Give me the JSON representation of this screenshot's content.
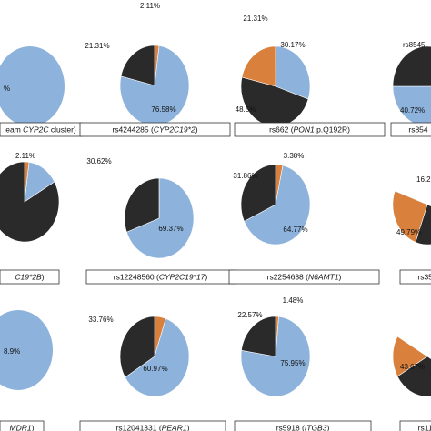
{
  "colors": {
    "blue": "#8DB3DC",
    "black": "#2A2A2A",
    "orange": "#D9813C"
  },
  "chart_data": [
    {
      "type": "pie",
      "caption": "eam CYP2C cluster)",
      "caption_parts": [
        "eam ",
        "CYP2C",
        " cluster)"
      ],
      "slices": [
        {
          "color": "blue",
          "value": null
        }
      ],
      "labels": [
        "%"
      ]
    },
    {
      "type": "pie",
      "caption": "rs4244285 (CYP2C19*2)",
      "caption_parts": [
        "rs4244285 (",
        "CYP2C19*2",
        ")"
      ],
      "slices": [
        {
          "color": "orange",
          "value": 2.11
        },
        {
          "color": "blue",
          "value": 76.58
        },
        {
          "color": "black",
          "value": 21.31
        }
      ],
      "labels": [
        "2.11%",
        "76.58%",
        "21.31%"
      ]
    },
    {
      "type": "pie",
      "caption": "rs662 (PON1 p.Q192R)",
      "caption_parts": [
        "rs662 (",
        "PON1",
        " p.Q192R)"
      ],
      "slices": [
        {
          "color": "blue",
          "value": 30.17
        },
        {
          "color": "black",
          "value": 48.5
        },
        {
          "color": "orange",
          "value": 21.31
        }
      ],
      "labels": [
        "30.17%",
        "48.5%",
        "21.31%"
      ]
    },
    {
      "type": "pie",
      "caption": "rs854",
      "caption_parts": [
        "rs854",
        "",
        ""
      ],
      "slices": [
        {
          "color": "blue",
          "value": null
        },
        {
          "color": "black",
          "value": 40.72
        }
      ],
      "labels": [
        "rs8545",
        "40.72%"
      ]
    },
    {
      "type": "pie",
      "caption": "C19*2B)",
      "caption_parts": [
        "",
        "C19*2B",
        ")"
      ],
      "slices": [
        {
          "color": "orange",
          "value": 2.11
        }
      ],
      "labels": [
        "2.11%"
      ]
    },
    {
      "type": "pie",
      "caption": "rs12248560 (CYP2C19*17)",
      "caption_parts": [
        "rs12248560 (",
        "CYP2C19*17",
        ")"
      ],
      "slices": [
        {
          "color": "blue",
          "value": 69.37
        },
        {
          "color": "black",
          "value": 30.62
        }
      ],
      "labels": [
        "69.37%",
        "30.62%"
      ]
    },
    {
      "type": "pie",
      "caption": "rs2254638 (N6AMT1)",
      "caption_parts": [
        "rs2254638 (",
        "N6AMT1",
        ")"
      ],
      "slices": [
        {
          "color": "orange",
          "value": 3.38
        },
        {
          "color": "blue",
          "value": 64.77
        },
        {
          "color": "black",
          "value": 31.86
        }
      ],
      "labels": [
        "3.38%",
        "64.77%",
        "31.86%"
      ]
    },
    {
      "type": "pie",
      "caption": "rs354",
      "caption_parts": [
        "rs354",
        "",
        ""
      ],
      "slices": [
        {
          "color": "orange",
          "value": 16.2
        },
        {
          "color": "black",
          "value": 49.79
        }
      ],
      "labels": [
        "16.2",
        "49.79%"
      ]
    },
    {
      "type": "pie",
      "caption": "MDR1)",
      "caption_parts": [
        "",
        "MDR1",
        ")"
      ],
      "slices": [
        {
          "color": "blue",
          "value": null
        }
      ],
      "labels": [
        "8.9%"
      ]
    },
    {
      "type": "pie",
      "caption": "rs12041331 (PEAR1)",
      "caption_parts": [
        "rs12041331 (",
        "PEAR1",
        ")"
      ],
      "slices": [
        {
          "color": "orange",
          "value": 5.27
        },
        {
          "color": "blue",
          "value": 60.97
        },
        {
          "color": "black",
          "value": 33.76
        }
      ],
      "labels": [
        "60.97%",
        "33.76%"
      ]
    },
    {
      "type": "pie",
      "caption": "rs5918 (ITGB3)",
      "caption_parts": [
        "rs5918 (",
        "ITGB3",
        ")"
      ],
      "slices": [
        {
          "color": "orange",
          "value": 1.48
        },
        {
          "color": "blue",
          "value": 75.95
        },
        {
          "color": "black",
          "value": 22.57
        }
      ],
      "labels": [
        "1.48%",
        "75.95%",
        "22.57%"
      ]
    },
    {
      "type": "pie",
      "caption": "rs112",
      "caption_parts": [
        "rs112",
        "",
        ""
      ],
      "slices": [
        {
          "color": "orange",
          "value": null
        },
        {
          "color": "black",
          "value": 43.67
        }
      ],
      "labels": [
        "43.67%"
      ]
    }
  ]
}
